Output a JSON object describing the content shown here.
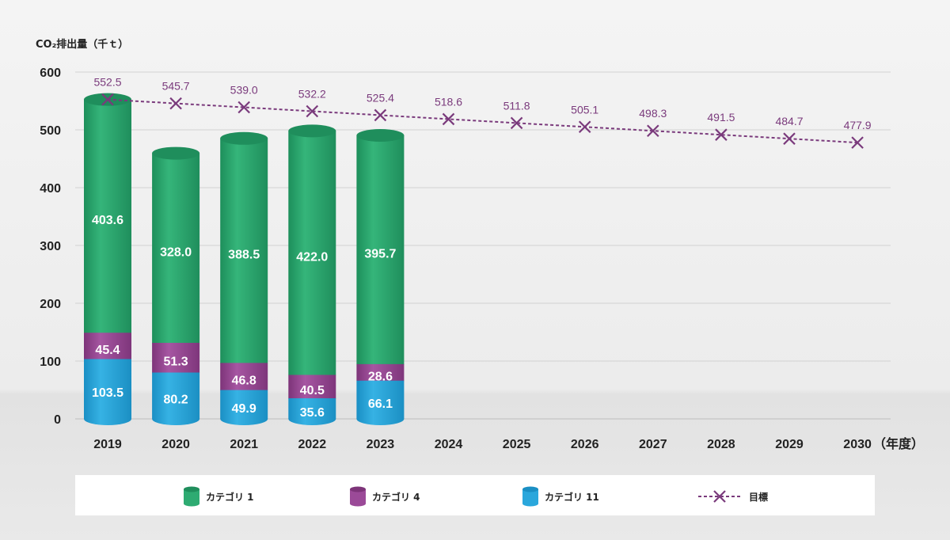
{
  "chart_data": {
    "type": "bar",
    "stacked": true,
    "title": "",
    "ylabel": "CO₂排出量（千ｔ）",
    "xlabel": "（年度）",
    "ylim": [
      0,
      600
    ],
    "yticks": [
      0,
      100,
      200,
      300,
      400,
      500,
      600
    ],
    "grid": true,
    "legend_position": "bottom",
    "categories": [
      "2019",
      "2020",
      "2021",
      "2022",
      "2023",
      "2024",
      "2025",
      "2026",
      "2027",
      "2028",
      "2029",
      "2030"
    ],
    "series": [
      {
        "name": "カテゴリ 11",
        "kind": "bar",
        "color": "#2aa7dc",
        "values": [
          103.5,
          80.2,
          49.9,
          35.6,
          66.1,
          null,
          null,
          null,
          null,
          null,
          null,
          null
        ]
      },
      {
        "name": "カテゴリ 4",
        "kind": "bar",
        "color": "#9b4a98",
        "values": [
          45.4,
          51.3,
          46.8,
          40.5,
          28.6,
          null,
          null,
          null,
          null,
          null,
          null,
          null
        ]
      },
      {
        "name": "カテゴリ 1",
        "kind": "bar",
        "color": "#2eab72",
        "values": [
          403.6,
          328.0,
          388.5,
          422.0,
          395.7,
          null,
          null,
          null,
          null,
          null,
          null,
          null
        ]
      },
      {
        "name": "目標",
        "kind": "line",
        "style": "dashed",
        "marker": "x",
        "color": "#7a3a7c",
        "values": [
          552.5,
          545.7,
          539.0,
          532.2,
          525.4,
          518.6,
          511.8,
          505.1,
          498.3,
          491.5,
          484.7,
          477.9
        ]
      }
    ],
    "legend": [
      "カテゴリ 1",
      "カテゴリ 4",
      "カテゴリ 11",
      "目標"
    ]
  }
}
